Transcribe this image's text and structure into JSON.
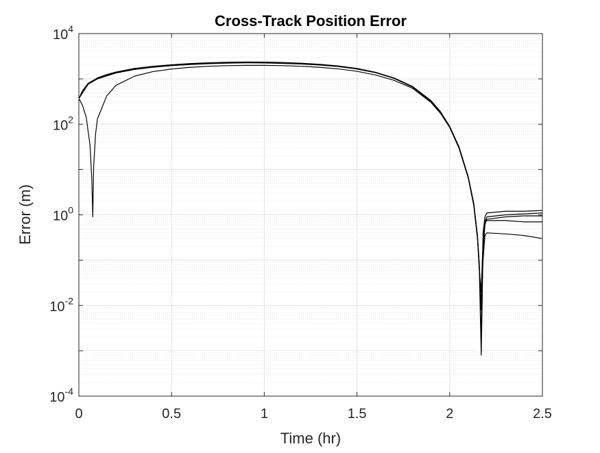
{
  "chart_data": {
    "type": "line",
    "title": "Cross-Track Position Error",
    "xlabel": "Time (hr)",
    "ylabel": "Error (m)",
    "yscale": "log",
    "xlim": [
      0,
      2.5
    ],
    "ylim": [
      0.0001,
      10000
    ],
    "grid": true,
    "minor_grid": true,
    "line_color": "#000000",
    "x_ticks": [
      {
        "value": 0,
        "label": "0"
      },
      {
        "value": 0.5,
        "label": "0.5"
      },
      {
        "value": 1,
        "label": "1"
      },
      {
        "value": 1.5,
        "label": "1.5"
      },
      {
        "value": 2,
        "label": "2"
      },
      {
        "value": 2.5,
        "label": "2.5"
      }
    ],
    "y_ticks": [
      {
        "value": 0.0001,
        "base": "10",
        "exp": "-4"
      },
      {
        "value": 0.01,
        "base": "10",
        "exp": "-2"
      },
      {
        "value": 1,
        "base": "10",
        "exp": "0"
      },
      {
        "value": 100,
        "base": "10",
        "exp": "2"
      },
      {
        "value": 10000,
        "base": "10",
        "exp": "4"
      }
    ],
    "series": [
      {
        "x": [
          0.0,
          0.02,
          0.05,
          0.1,
          0.15,
          0.2,
          0.3,
          0.4,
          0.5,
          0.6,
          0.7,
          0.8,
          0.9,
          1.0,
          1.1,
          1.2,
          1.3,
          1.4,
          1.5,
          1.6,
          1.7,
          1.8,
          1.9,
          1.95,
          2.0,
          2.05,
          2.1,
          2.13,
          2.15,
          2.16,
          2.17,
          2.175,
          2.18,
          2.19,
          2.2,
          2.3,
          2.4,
          2.5
        ],
        "y": [
          370,
          550,
          800,
          1050,
          1250,
          1420,
          1700,
          1900,
          2050,
          2180,
          2270,
          2330,
          2360,
          2350,
          2300,
          2220,
          2100,
          1930,
          1700,
          1400,
          1050,
          680,
          330,
          190,
          90,
          32,
          7,
          1.8,
          0.35,
          0.08,
          0.002,
          0.02,
          0.4,
          0.9,
          1.1,
          1.2,
          1.2,
          1.25
        ]
      },
      {
        "x": [
          0.0,
          0.02,
          0.04,
          0.06,
          0.07,
          0.075,
          0.08,
          0.09,
          0.1,
          0.15,
          0.2,
          0.3,
          0.4,
          0.5,
          0.6,
          0.7,
          0.8,
          0.9,
          1.0,
          1.1,
          1.2,
          1.3,
          1.4,
          1.5,
          1.6,
          1.7,
          1.8,
          1.9,
          1.95,
          2.0,
          2.05,
          2.1,
          2.13,
          2.15,
          2.16,
          2.17,
          2.175,
          2.18,
          2.19,
          2.2,
          2.3,
          2.4,
          2.5
        ],
        "y": [
          370,
          260,
          140,
          35,
          6,
          0.9,
          12,
          60,
          130,
          420,
          720,
          1150,
          1450,
          1650,
          1800,
          1900,
          1960,
          1990,
          1990,
          1960,
          1900,
          1800,
          1660,
          1470,
          1220,
          930,
          620,
          300,
          175,
          85,
          30,
          6.5,
          1.6,
          0.3,
          0.06,
          0.0008,
          0.01,
          0.25,
          0.7,
          0.9,
          1.0,
          1.05,
          1.1
        ]
      },
      {
        "x": [
          0.0,
          0.05,
          0.1,
          0.2,
          0.3,
          0.4,
          0.5,
          0.6,
          0.7,
          0.8,
          0.9,
          1.0,
          1.1,
          1.2,
          1.3,
          1.4,
          1.5,
          1.6,
          1.7,
          1.8,
          1.9,
          1.95,
          2.0,
          2.05,
          2.1,
          2.13,
          2.15,
          2.16,
          2.17,
          2.18,
          2.19,
          2.2,
          2.3,
          2.4,
          2.5
        ],
        "y": [
          370,
          780,
          1020,
          1380,
          1650,
          1850,
          2000,
          2120,
          2210,
          2270,
          2300,
          2290,
          2240,
          2170,
          2060,
          1900,
          1680,
          1390,
          1040,
          670,
          320,
          185,
          88,
          31,
          6.8,
          1.7,
          0.32,
          0.07,
          0.01,
          0.15,
          0.6,
          0.8,
          0.9,
          0.95,
          0.95
        ]
      },
      {
        "x": [
          0.0,
          0.05,
          0.1,
          0.2,
          0.3,
          0.4,
          0.5,
          0.6,
          0.7,
          0.8,
          0.9,
          1.0,
          1.1,
          1.2,
          1.3,
          1.4,
          1.5,
          1.6,
          1.7,
          1.8,
          1.9,
          1.95,
          2.0,
          2.05,
          2.1,
          2.13,
          2.15,
          2.16,
          2.17,
          2.18,
          2.19,
          2.2,
          2.3,
          2.4,
          2.5
        ],
        "y": [
          370,
          760,
          1000,
          1350,
          1610,
          1810,
          1960,
          2080,
          2170,
          2230,
          2260,
          2250,
          2200,
          2130,
          2020,
          1870,
          1650,
          1370,
          1030,
          660,
          315,
          182,
          86,
          30,
          6.6,
          1.65,
          0.3,
          0.06,
          0.02,
          0.3,
          0.7,
          0.75,
          0.75,
          0.7,
          0.7
        ]
      },
      {
        "x": [
          0.0,
          0.05,
          0.1,
          0.2,
          0.3,
          0.4,
          0.5,
          0.6,
          0.7,
          0.8,
          0.9,
          1.0,
          1.1,
          1.2,
          1.3,
          1.4,
          1.5,
          1.6,
          1.7,
          1.8,
          1.9,
          1.95,
          2.0,
          2.05,
          2.1,
          2.13,
          2.15,
          2.16,
          2.17,
          2.18,
          2.19,
          2.2,
          2.3,
          2.4,
          2.5
        ],
        "y": [
          370,
          770,
          1010,
          1360,
          1630,
          1830,
          1980,
          2100,
          2190,
          2250,
          2280,
          2270,
          2220,
          2150,
          2040,
          1880,
          1660,
          1380,
          1035,
          665,
          318,
          184,
          87,
          30,
          6.7,
          1.7,
          0.31,
          0.065,
          0.008,
          0.1,
          0.35,
          0.4,
          0.38,
          0.35,
          0.3
        ]
      }
    ]
  }
}
